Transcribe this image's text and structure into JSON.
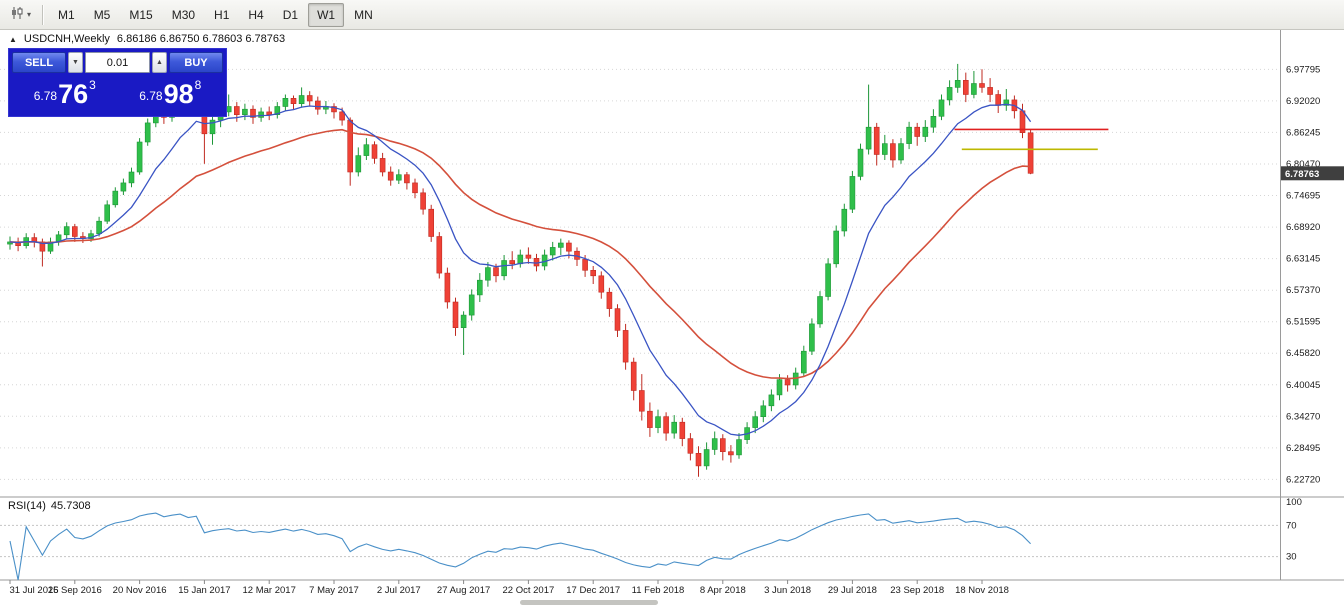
{
  "toolbar": {
    "timeframes": [
      {
        "label": "M1",
        "active": false
      },
      {
        "label": "M5",
        "active": false
      },
      {
        "label": "M15",
        "active": false
      },
      {
        "label": "M30",
        "active": false
      },
      {
        "label": "H1",
        "active": false
      },
      {
        "label": "H4",
        "active": false
      },
      {
        "label": "D1",
        "active": false
      },
      {
        "label": "W1",
        "active": true
      },
      {
        "label": "MN",
        "active": false
      }
    ]
  },
  "chart_header": {
    "symbol_period": "USDCNH,Weekly",
    "ohlc": "6.86186 6.86750 6.78603 6.78763"
  },
  "trade_panel": {
    "sell_label": "SELL",
    "buy_label": "BUY",
    "lot_size": "0.01",
    "sell_price": {
      "prefix": "6.78",
      "big": "76",
      "sup": "3"
    },
    "buy_price": {
      "prefix": "6.78",
      "big": "98",
      "sup": "8"
    }
  },
  "indicator": {
    "label": "RSI(14)",
    "value": "45.7308"
  },
  "chart_data": {
    "type": "candlestick",
    "symbol": "USDCNH",
    "timeframe": "Weekly",
    "current_ohlc": {
      "open": 6.86186,
      "high": 6.8675,
      "low": 6.78603,
      "close": 6.78763
    },
    "current_price_tag": "6.78763",
    "price_axis_levels": [
      "6.97795",
      "6.92020",
      "6.86245",
      "6.80470",
      "6.74695",
      "6.68920",
      "6.63145",
      "6.57370",
      "6.51595",
      "6.45820",
      "6.40045",
      "6.34270",
      "6.28495",
      "6.22720"
    ],
    "date_axis": [
      "31 Jul 2016",
      "25 Sep 2016",
      "20 Nov 2016",
      "15 Jan 2017",
      "12 Mar 2017",
      "7 May 2017",
      "2 Jul 2017",
      "27 Aug 2017",
      "22 Oct 2017",
      "17 Dec 2017",
      "11 Feb 2018",
      "8 Apr 2018",
      "3 Jun 2018",
      "29 Jul 2018",
      "23 Sep 2018",
      "18 Nov 2018"
    ],
    "tick_interval_candles": 8,
    "candles": [
      [
        6.658,
        6.672,
        6.648,
        6.662
      ],
      [
        6.662,
        6.67,
        6.645,
        6.655
      ],
      [
        6.655,
        6.678,
        6.65,
        6.67
      ],
      [
        6.67,
        6.678,
        6.652,
        6.662
      ],
      [
        6.662,
        6.668,
        6.617,
        6.645
      ],
      [
        6.645,
        6.67,
        6.64,
        6.662
      ],
      [
        6.662,
        6.682,
        6.655,
        6.675
      ],
      [
        6.675,
        6.698,
        6.668,
        6.69
      ],
      [
        6.69,
        6.695,
        6.662,
        6.672
      ],
      [
        6.672,
        6.68,
        6.66,
        6.668
      ],
      [
        6.668,
        6.684,
        6.662,
        6.677
      ],
      [
        6.677,
        6.708,
        6.672,
        6.7
      ],
      [
        6.7,
        6.738,
        6.695,
        6.73
      ],
      [
        6.73,
        6.762,
        6.725,
        6.755
      ],
      [
        6.755,
        6.778,
        6.748,
        6.77
      ],
      [
        6.77,
        6.798,
        6.762,
        6.79
      ],
      [
        6.79,
        6.852,
        6.785,
        6.845
      ],
      [
        6.845,
        6.888,
        6.838,
        6.88
      ],
      [
        6.88,
        6.912,
        6.872,
        6.905
      ],
      [
        6.905,
        6.915,
        6.878,
        6.89
      ],
      [
        6.89,
        6.928,
        6.882,
        6.92
      ],
      [
        6.92,
        6.952,
        6.912,
        6.945
      ],
      [
        6.945,
        6.96,
        6.918,
        6.93
      ],
      [
        6.93,
        6.978,
        6.925,
        6.955
      ],
      [
        6.955,
        6.962,
        6.805,
        6.86
      ],
      [
        6.86,
        6.895,
        6.84,
        6.885
      ],
      [
        6.885,
        6.908,
        6.872,
        6.9
      ],
      [
        6.9,
        6.932,
        6.892,
        6.91
      ],
      [
        6.91,
        6.918,
        6.882,
        6.895
      ],
      [
        6.895,
        6.915,
        6.885,
        6.905
      ],
      [
        6.905,
        6.912,
        6.878,
        6.89
      ],
      [
        6.89,
        6.908,
        6.882,
        6.9
      ],
      [
        6.9,
        6.91,
        6.885,
        6.895
      ],
      [
        6.895,
        6.918,
        6.888,
        6.91
      ],
      [
        6.91,
        6.932,
        6.902,
        6.925
      ],
      [
        6.925,
        6.93,
        6.905,
        6.915
      ],
      [
        6.915,
        6.945,
        6.908,
        6.93
      ],
      [
        6.93,
        6.938,
        6.91,
        6.92
      ],
      [
        6.92,
        6.928,
        6.895,
        6.905
      ],
      [
        6.905,
        6.92,
        6.896,
        6.91
      ],
      [
        6.91,
        6.916,
        6.888,
        6.9
      ],
      [
        6.9,
        6.908,
        6.875,
        6.885
      ],
      [
        6.885,
        6.89,
        6.765,
        6.79
      ],
      [
        6.79,
        6.835,
        6.782,
        6.82
      ],
      [
        6.82,
        6.852,
        6.812,
        6.84
      ],
      [
        6.84,
        6.846,
        6.805,
        6.815
      ],
      [
        6.815,
        6.825,
        6.782,
        6.79
      ],
      [
        6.79,
        6.8,
        6.765,
        6.775
      ],
      [
        6.775,
        6.795,
        6.768,
        6.785
      ],
      [
        6.785,
        6.79,
        6.758,
        6.77
      ],
      [
        6.77,
        6.778,
        6.742,
        6.752
      ],
      [
        6.752,
        6.76,
        6.712,
        6.722
      ],
      [
        6.722,
        6.73,
        6.662,
        6.672
      ],
      [
        6.672,
        6.68,
        6.595,
        6.605
      ],
      [
        6.605,
        6.615,
        6.54,
        6.552
      ],
      [
        6.552,
        6.56,
        6.49,
        6.505
      ],
      [
        6.505,
        6.535,
        6.455,
        6.528
      ],
      [
        6.528,
        6.575,
        6.518,
        6.565
      ],
      [
        6.565,
        6.605,
        6.552,
        6.592
      ],
      [
        6.592,
        6.625,
        6.58,
        6.615
      ],
      [
        6.615,
        6.622,
        6.588,
        6.6
      ],
      [
        6.6,
        6.638,
        6.592,
        6.628
      ],
      [
        6.628,
        6.645,
        6.612,
        6.622
      ],
      [
        6.622,
        6.648,
        6.615,
        6.638
      ],
      [
        6.638,
        6.652,
        6.622,
        6.632
      ],
      [
        6.632,
        6.64,
        6.608,
        6.618
      ],
      [
        6.618,
        6.648,
        6.61,
        6.638
      ],
      [
        6.638,
        6.662,
        6.628,
        6.652
      ],
      [
        6.652,
        6.668,
        6.638,
        6.66
      ],
      [
        6.66,
        6.665,
        6.632,
        6.645
      ],
      [
        6.645,
        6.652,
        6.618,
        6.63
      ],
      [
        6.63,
        6.638,
        6.598,
        6.61
      ],
      [
        6.61,
        6.618,
        6.585,
        6.6
      ],
      [
        6.6,
        6.608,
        6.558,
        6.57
      ],
      [
        6.57,
        6.578,
        6.525,
        6.54
      ],
      [
        6.54,
        6.548,
        6.488,
        6.5
      ],
      [
        6.5,
        6.512,
        6.428,
        6.442
      ],
      [
        6.442,
        6.45,
        6.372,
        6.39
      ],
      [
        6.39,
        6.42,
        6.335,
        6.352
      ],
      [
        6.352,
        6.368,
        6.305,
        6.322
      ],
      [
        6.322,
        6.355,
        6.312,
        6.342
      ],
      [
        6.342,
        6.35,
        6.298,
        6.312
      ],
      [
        6.312,
        6.345,
        6.302,
        6.332
      ],
      [
        6.332,
        6.34,
        6.288,
        6.302
      ],
      [
        6.302,
        6.312,
        6.262,
        6.275
      ],
      [
        6.275,
        6.288,
        6.232,
        6.252
      ],
      [
        6.252,
        6.295,
        6.245,
        6.282
      ],
      [
        6.282,
        6.315,
        6.272,
        6.302
      ],
      [
        6.302,
        6.31,
        6.262,
        6.278
      ],
      [
        6.278,
        6.29,
        6.258,
        6.272
      ],
      [
        6.272,
        6.312,
        6.265,
        6.3
      ],
      [
        6.3,
        6.332,
        6.292,
        6.322
      ],
      [
        6.322,
        6.352,
        6.312,
        6.342
      ],
      [
        6.342,
        6.372,
        6.332,
        6.362
      ],
      [
        6.362,
        6.392,
        6.352,
        6.382
      ],
      [
        6.382,
        6.42,
        6.372,
        6.41
      ],
      [
        6.41,
        6.418,
        6.388,
        6.4
      ],
      [
        6.4,
        6.432,
        6.392,
        6.422
      ],
      [
        6.422,
        6.472,
        6.415,
        6.462
      ],
      [
        6.462,
        6.522,
        6.455,
        6.512
      ],
      [
        6.512,
        6.572,
        6.505,
        6.562
      ],
      [
        6.562,
        6.632,
        6.555,
        6.622
      ],
      [
        6.622,
        6.692,
        6.615,
        6.682
      ],
      [
        6.682,
        6.732,
        6.672,
        6.722
      ],
      [
        6.722,
        6.792,
        6.715,
        6.782
      ],
      [
        6.782,
        6.842,
        6.775,
        6.832
      ],
      [
        6.832,
        6.95,
        6.822,
        6.872
      ],
      [
        6.872,
        6.88,
        6.802,
        6.822
      ],
      [
        6.822,
        6.858,
        6.812,
        6.842
      ],
      [
        6.842,
        6.85,
        6.798,
        6.812
      ],
      [
        6.812,
        6.852,
        6.805,
        6.842
      ],
      [
        6.842,
        6.882,
        6.832,
        6.872
      ],
      [
        6.872,
        6.88,
        6.838,
        6.855
      ],
      [
        6.855,
        6.885,
        6.845,
        6.872
      ],
      [
        6.872,
        6.905,
        6.862,
        6.892
      ],
      [
        6.892,
        6.932,
        6.885,
        6.922
      ],
      [
        6.922,
        6.958,
        6.912,
        6.945
      ],
      [
        6.945,
        6.988,
        6.935,
        6.958
      ],
      [
        6.958,
        6.972,
        6.918,
        6.932
      ],
      [
        6.932,
        6.975,
        6.925,
        6.952
      ],
      [
        6.952,
        6.978,
        6.935,
        6.945
      ],
      [
        6.945,
        6.962,
        6.918,
        6.932
      ],
      [
        6.932,
        6.94,
        6.898,
        6.912
      ],
      [
        6.912,
        6.942,
        6.902,
        6.922
      ],
      [
        6.922,
        6.93,
        6.888,
        6.902
      ],
      [
        6.902,
        6.915,
        6.852,
        6.862
      ],
      [
        6.86186,
        6.8675,
        6.78603,
        6.78763
      ]
    ],
    "overlays": {
      "ma_fast": {
        "type": "ema",
        "period": 10,
        "color": "#3a54c4"
      },
      "ma_slow": {
        "type": "ema",
        "period": 30,
        "color": "#d4503c"
      }
    },
    "hlines": [
      {
        "price": 6.868,
        "color": "#e02020",
        "from_candle": 116.6,
        "to_candle": 135.6
      },
      {
        "price": 6.8315,
        "color": "#bdb800",
        "from_candle": 117.5,
        "to_candle": 134.3
      }
    ],
    "rsi": {
      "period": 14,
      "current": 45.7308,
      "levels": [
        100,
        70,
        30
      ],
      "dashed_levels": [
        70,
        30
      ],
      "color": "#4a90c8"
    },
    "colors": {
      "bull": "#2fbf4a",
      "bull_stroke": "#1e9638",
      "bear": "#ef4136",
      "bear_stroke": "#bf2b22"
    }
  }
}
